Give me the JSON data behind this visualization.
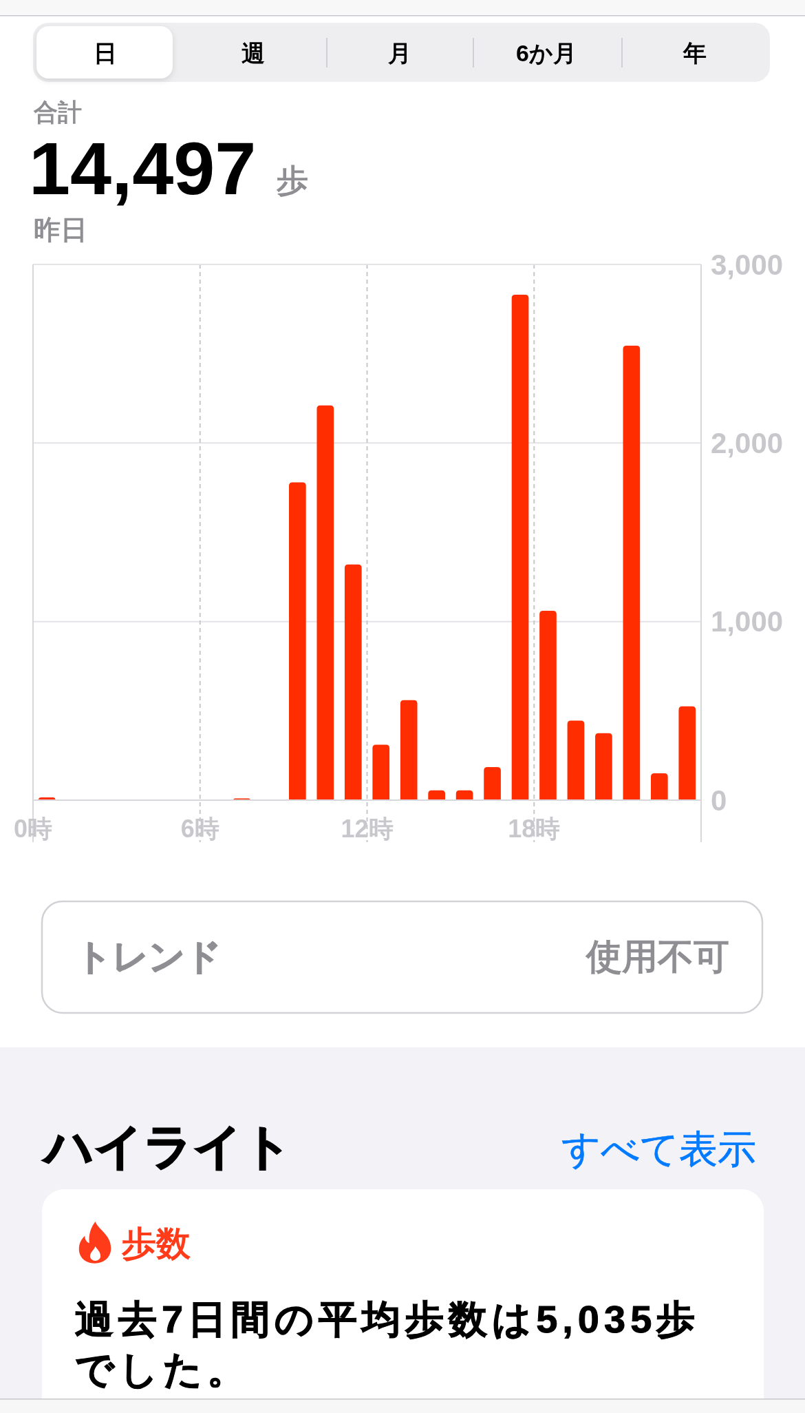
{
  "chart_data": {
    "type": "bar",
    "x": [
      0.5,
      1.5,
      2.5,
      3.5,
      4.5,
      5.5,
      6.5,
      7.5,
      8.5,
      9.5,
      10.5,
      11.5,
      12.5,
      13.5,
      14.5,
      15.5,
      16.5,
      17.5,
      18.5,
      19.5,
      20.5,
      21.5,
      22.5,
      23.5
    ],
    "values": [
      15,
      null,
      null,
      null,
      null,
      null,
      null,
      10,
      null,
      1780,
      2210,
      1320,
      310,
      560,
      55,
      55,
      185,
      2830,
      1060,
      445,
      375,
      2545,
      150,
      525
    ],
    "color": "#ff2d00",
    "xlim": [
      0,
      24
    ],
    "xticks": [
      {
        "value": 0,
        "label": "0時"
      },
      {
        "value": 6,
        "label": "6時"
      },
      {
        "value": 12,
        "label": "12時"
      },
      {
        "value": 18,
        "label": "18時"
      }
    ],
    "ylim": [
      0,
      3000
    ],
    "yticks": [
      0,
      {
        "value": 1000,
        "label": "1,000"
      },
      {
        "value": 2000,
        "label": "2,000"
      },
      {
        "value": 3000,
        "label": "3,000"
      }
    ],
    "grid": true,
    "annotations": [
      "日",
      "週",
      "月",
      "6か月",
      "年",
      "合計",
      "14,497",
      "歩",
      "昨日",
      "トレンド",
      "使用不可",
      "ハイライト",
      "すべて表示",
      "歩数",
      "過去7日間の平均歩数は5,035歩でした。"
    ]
  }
}
